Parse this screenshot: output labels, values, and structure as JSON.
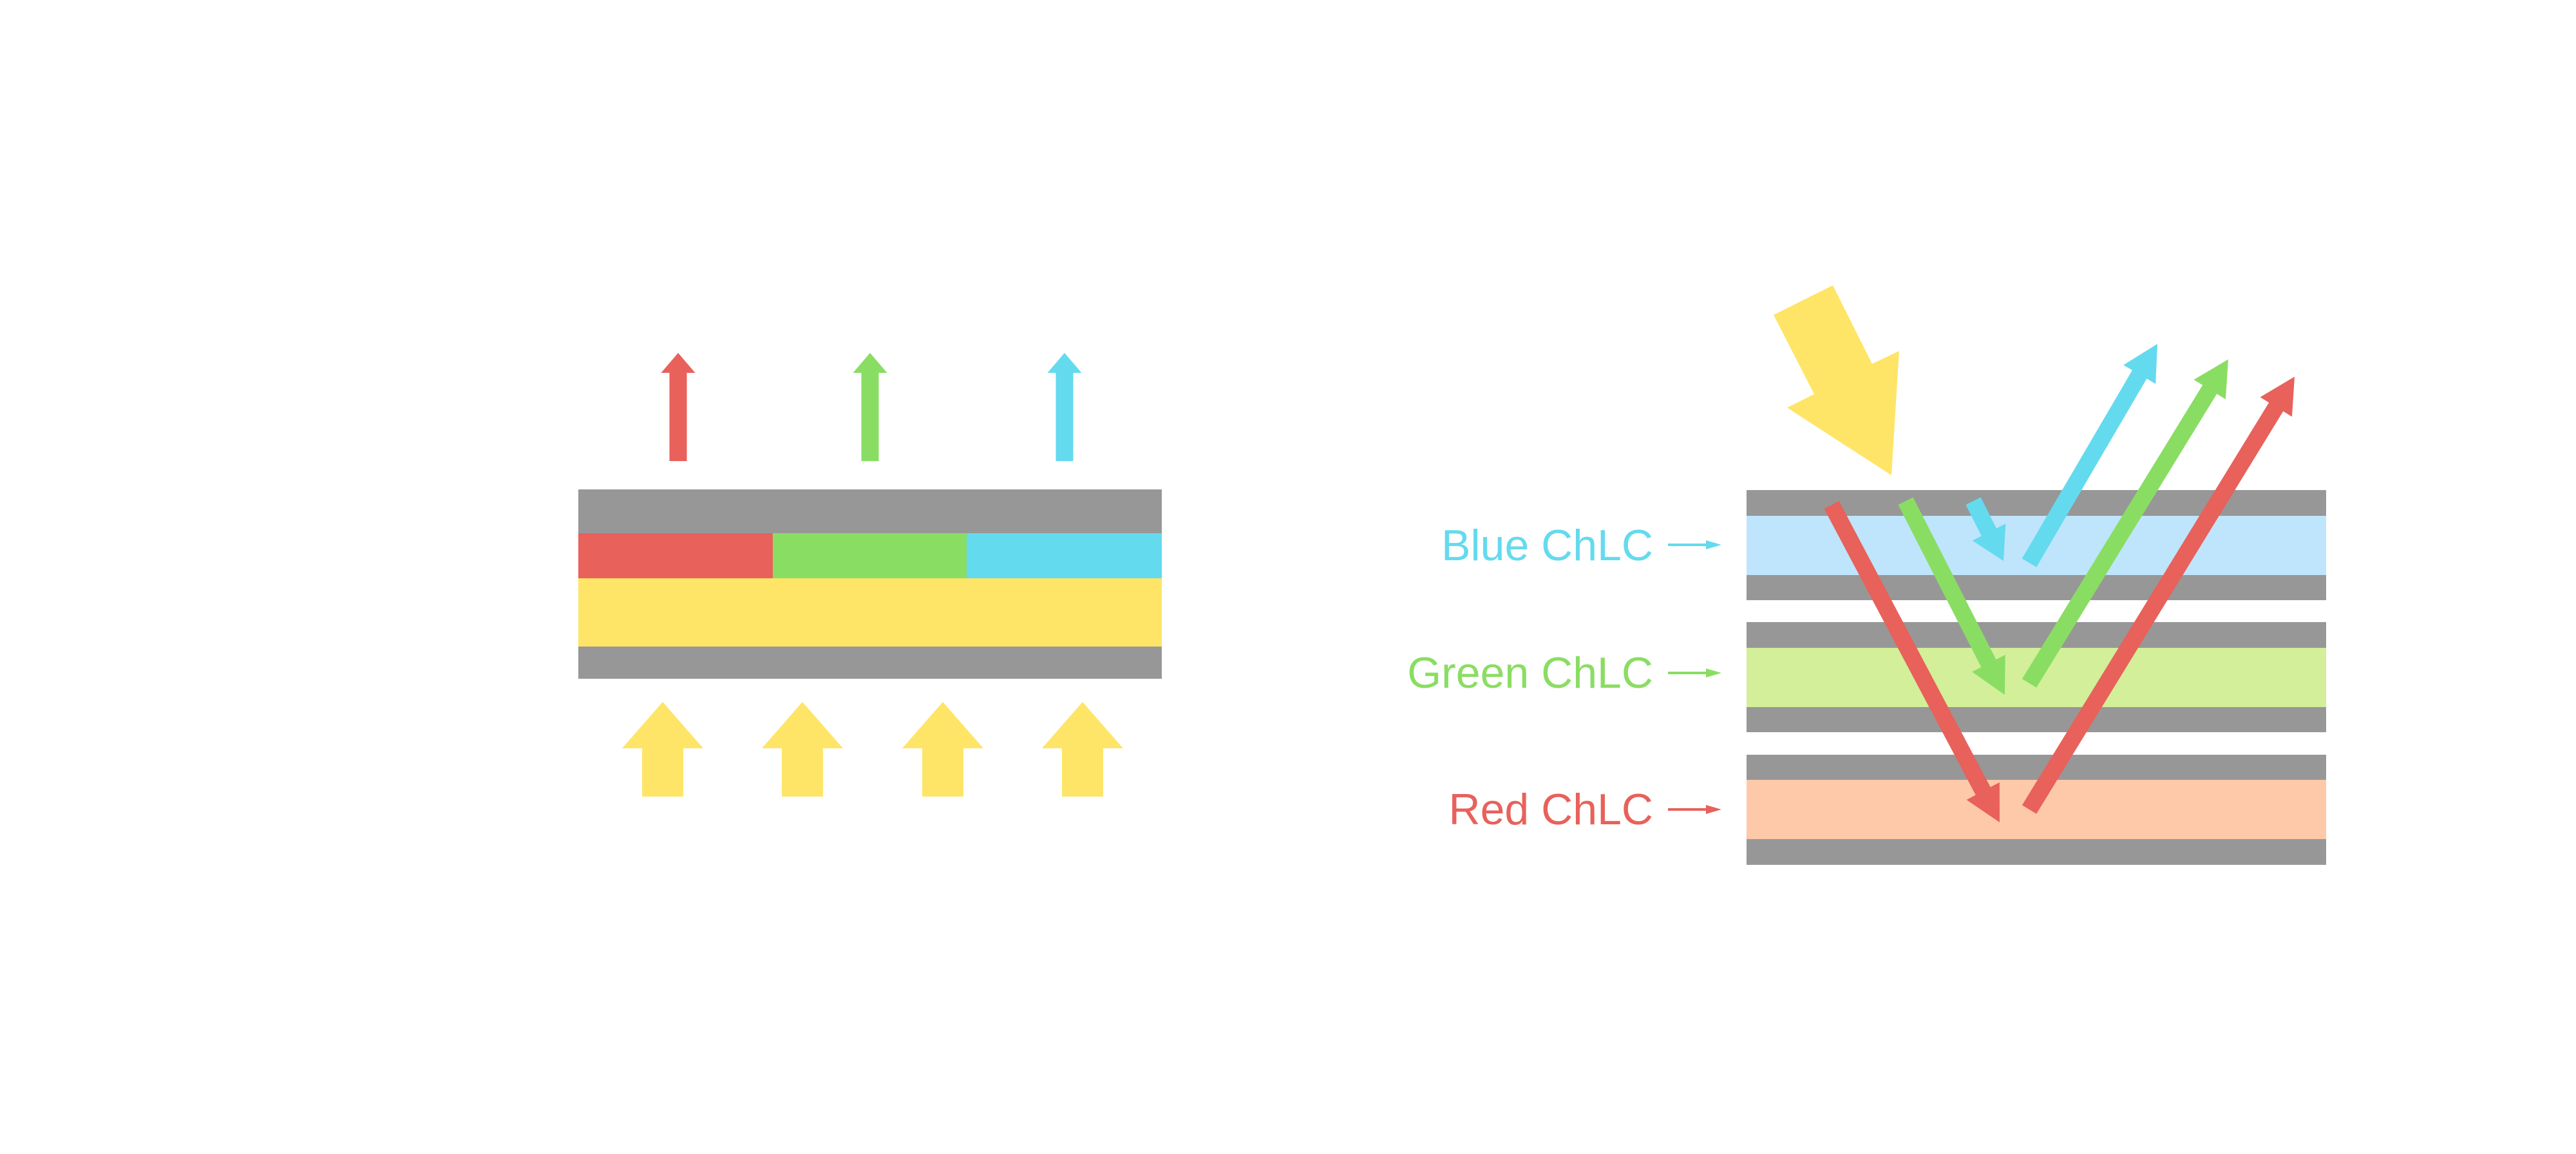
{
  "colors": {
    "red": "#E8615B",
    "green": "#8ADD63",
    "cyan": "#64DAEE",
    "yellow": "#FEE567",
    "gray": "#979797",
    "blue_layer": "#BEE5FC",
    "green_layer": "#D3EF99",
    "red_layer": "#FDC9A9"
  },
  "right_diagram": {
    "labels": {
      "blue": "Blue ChLC",
      "green": "Green ChLC",
      "red": "Red ChLC"
    }
  }
}
